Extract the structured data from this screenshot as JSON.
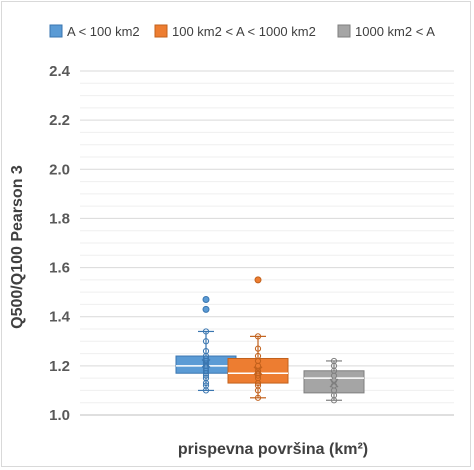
{
  "chart_data": {
    "type": "box",
    "xlabel": "prispevna površina (km²)",
    "ylabel": "Q500/Q100 Pearson 3",
    "ylim": [
      1.0,
      2.4
    ],
    "yticks": [
      "1.0",
      "1.2",
      "1.4",
      "1.6",
      "1.8",
      "2.0",
      "2.2",
      "2.4"
    ],
    "grid": true,
    "legend_position": "top",
    "series": [
      {
        "name": "A < 100 km2",
        "color": "#5b9bd5",
        "edge": "#3a76b0",
        "whisker_low": 1.1,
        "q1": 1.17,
        "median": 1.2,
        "q3": 1.24,
        "whisker_high": 1.34,
        "mean": 1.21,
        "points": [
          1.1,
          1.12,
          1.13,
          1.15,
          1.16,
          1.17,
          1.18,
          1.19,
          1.2,
          1.21,
          1.22,
          1.23,
          1.24,
          1.26,
          1.3,
          1.34
        ],
        "outliers": [
          1.43,
          1.47
        ]
      },
      {
        "name": "100 km2 < A < 1000 km2",
        "color": "#ed7d31",
        "edge": "#c2611c",
        "whisker_low": 1.07,
        "q1": 1.13,
        "median": 1.17,
        "q3": 1.23,
        "whisker_high": 1.32,
        "mean": 1.18,
        "points": [
          1.07,
          1.1,
          1.12,
          1.13,
          1.15,
          1.16,
          1.17,
          1.18,
          1.2,
          1.22,
          1.24,
          1.27,
          1.32
        ],
        "outliers": [
          1.55
        ]
      },
      {
        "name": "1000 km2 < A",
        "color": "#a5a5a5",
        "edge": "#7f7f7f",
        "whisker_low": 1.06,
        "q1": 1.09,
        "median": 1.15,
        "q3": 1.18,
        "whisker_high": 1.22,
        "mean": 1.13,
        "points": [
          1.06,
          1.08,
          1.1,
          1.12,
          1.14,
          1.16,
          1.18,
          1.2,
          1.22
        ],
        "outliers": []
      }
    ]
  }
}
